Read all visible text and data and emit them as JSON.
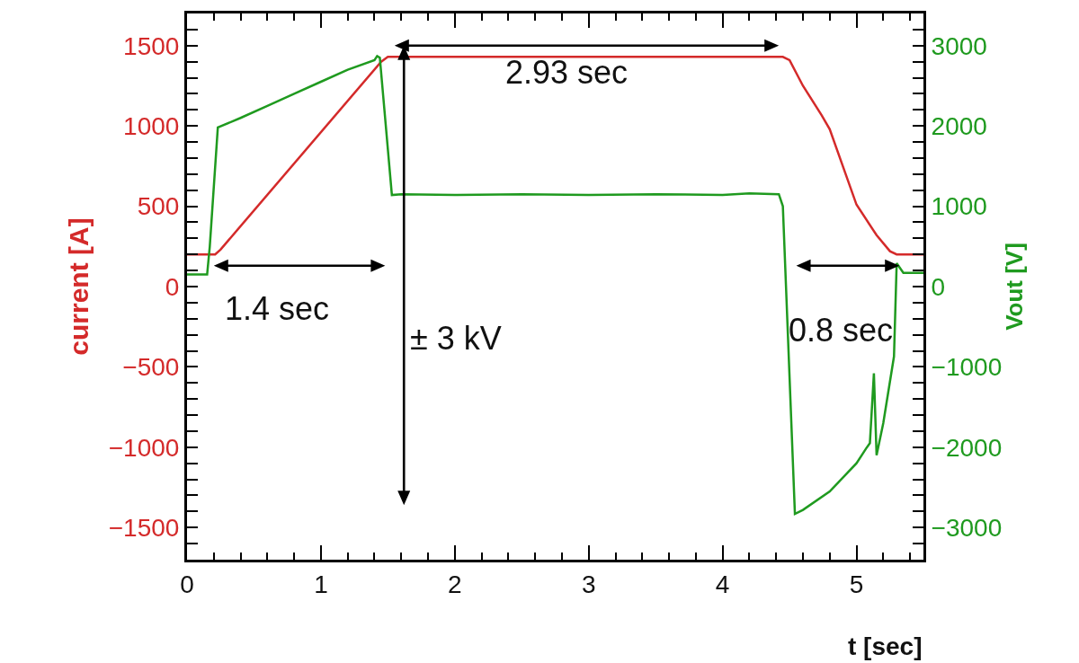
{
  "chart_data": {
    "type": "line",
    "xlabel": "t [sec]",
    "ylabel": "current [A]",
    "y2label": "Vout [V]",
    "xlim": [
      0,
      5.5
    ],
    "xticks": [
      0,
      1,
      2,
      3,
      4,
      5
    ],
    "ylim": [
      -1700,
      1700
    ],
    "yticks": [
      -1500,
      -1000,
      -500,
      0,
      500,
      1000,
      1500
    ],
    "y2lim": [
      -3400,
      3400
    ],
    "y2ticks": [
      -3000,
      -2000,
      -1000,
      0,
      1000,
      2000,
      3000
    ],
    "line_style": "solid",
    "series": [
      {
        "color": "#d42a2a",
        "x": [
          0,
          0.21,
          0.25,
          1.45,
          1.5,
          1.55,
          4.45,
          4.5,
          4.6,
          4.74,
          4.8,
          5.0,
          5.15,
          5.25,
          5.3,
          5.5
        ],
        "values": [
          200,
          200,
          230,
          1400,
          1430,
          1430,
          1430,
          1410,
          1250,
          1066,
          980,
          510,
          320,
          220,
          200,
          200
        ]
      },
      {
        "color": "#1f9a1f",
        "axis": "y2",
        "x": [
          0,
          0.15,
          0.17,
          0.23,
          0.4,
          0.6,
          0.8,
          1.0,
          1.2,
          1.4,
          1.42,
          1.44,
          1.53,
          1.6,
          2,
          2.5,
          3,
          3.5,
          4,
          4.2,
          4.42,
          4.45,
          4.54,
          4.6,
          4.8,
          5.0,
          5.07,
          5.1,
          5.13,
          5.15,
          5.2,
          5.28,
          5.3,
          5.35,
          5.5
        ],
        "values": [
          150,
          150,
          500,
          1980,
          2100,
          2250,
          2400,
          2550,
          2700,
          2820,
          2870,
          2850,
          1140,
          1150,
          1140,
          1150,
          1140,
          1150,
          1140,
          1160,
          1150,
          1000,
          -2830,
          -2780,
          -2550,
          -2200,
          -2020,
          -1950,
          -1080,
          -2100,
          -1700,
          -870,
          290,
          170,
          170
        ]
      }
    ],
    "annotations": [
      "1.4 sec",
      "2.93 sec",
      "± 3 kV",
      "0.8 sec"
    ]
  }
}
